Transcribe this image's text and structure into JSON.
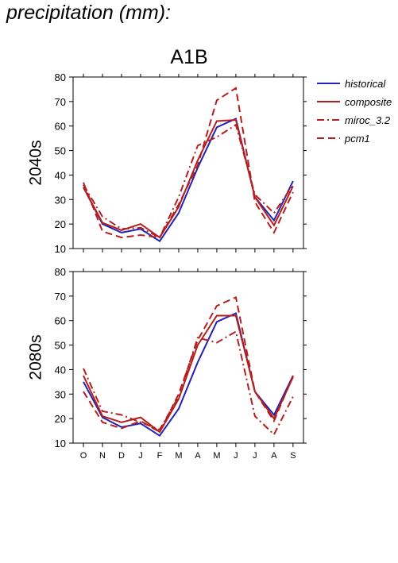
{
  "page_title": "precipitation (mm):",
  "chart_data": {
    "type": "line",
    "scenario": "A1B",
    "months": [
      "O",
      "N",
      "D",
      "J",
      "F",
      "M",
      "A",
      "M",
      "J",
      "J",
      "A",
      "S"
    ],
    "ylim": [
      10,
      80
    ],
    "yticks": [
      10,
      20,
      30,
      40,
      50,
      60,
      70,
      80
    ],
    "legend": {
      "position": "right",
      "entries": [
        {
          "name": "historical",
          "color": "#2323b4",
          "dash": "solid"
        },
        {
          "name": "composite",
          "color": "#b41e1e",
          "dash": "solid"
        },
        {
          "name": "miroc_3.2",
          "color": "#b41e1e",
          "dash": "dashdot"
        },
        {
          "name": "pcm1",
          "color": "#b41e1e",
          "dash": "dash"
        }
      ]
    },
    "panels": [
      {
        "label": "2040s",
        "series": [
          {
            "name": "historical",
            "values": [
              35,
              20,
              16.5,
              18,
              13,
              24.5,
              43,
              59.5,
              63,
              31,
              21.5,
              37.5
            ]
          },
          {
            "name": "composite",
            "values": [
              35,
              20.5,
              17.5,
              20,
              14.5,
              27,
              46,
              62,
              62.5,
              31,
              19.5,
              35.5
            ]
          },
          {
            "name": "miroc_3.2",
            "values": [
              36,
              23,
              18,
              18.5,
              14.5,
              31,
              52,
              55.5,
              60.5,
              32,
              24.5,
              36
            ]
          },
          {
            "name": "pcm1",
            "values": [
              37,
              17,
              14.5,
              15.5,
              14.5,
              28,
              44,
              70.5,
              75.5,
              29,
              16.5,
              33
            ]
          }
        ]
      },
      {
        "label": "2080s",
        "series": [
          {
            "name": "historical",
            "values": [
              35,
              20.5,
              16.5,
              18,
              13,
              24,
              43,
              59.5,
              63,
              31,
              21.5,
              37.5
            ]
          },
          {
            "name": "composite",
            "values": [
              37.5,
              21,
              18.5,
              20.5,
              14.5,
              28,
              50,
              62,
              62,
              31,
              20,
              37
            ]
          },
          {
            "name": "miroc_3.2",
            "values": [
              40.5,
              23,
              21.5,
              18.5,
              15.5,
              29,
              53,
              51,
              55.5,
              21,
              13.5,
              29
            ]
          },
          {
            "name": "pcm1",
            "values": [
              31,
              18.5,
              16,
              19,
              14.5,
              30,
              52,
              66,
              69.5,
              31,
              19,
              37.5
            ]
          }
        ]
      }
    ]
  }
}
